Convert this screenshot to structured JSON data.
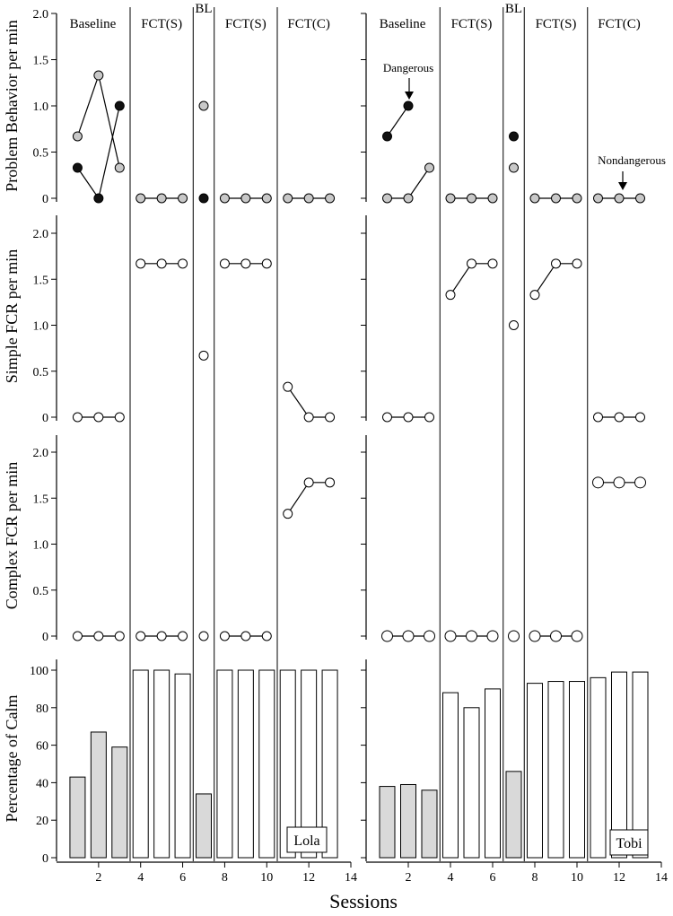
{
  "figure": {
    "x_axis_label": "Sessions",
    "x_ticks": [
      2,
      4,
      6,
      8,
      10,
      12,
      14
    ],
    "phase_change_lines": [
      3.5,
      6.5,
      7.5,
      10.5
    ]
  },
  "colors": {
    "dangerous_marker": "#111111",
    "nondangerous_marker": "#c8c8c8",
    "fcr_marker": "#ffffff",
    "baseline_bar": "#d9d9d9",
    "treatment_bar": "#ffffff"
  },
  "chart_data": [
    {
      "participant": "Lola",
      "phase_labels": [
        "Baseline",
        "FCT(S)",
        "BL",
        "FCT(S)",
        "FCT(C)"
      ],
      "panels": [
        {
          "type": "line",
          "ylabel": "Problem Behavior per min",
          "ylim": [
            0,
            2.0
          ],
          "yticks": [
            "0",
            "0.5",
            "1.0",
            "1.5",
            "2.0"
          ],
          "series": [
            {
              "marker": "grey",
              "segments": [
                [
                  [
                    1,
                    0.67
                  ],
                  [
                    2,
                    1.33
                  ],
                  [
                    3,
                    0.33
                  ]
                ],
                [
                  [
                    4,
                    0
                  ],
                  [
                    5,
                    0
                  ],
                  [
                    6,
                    0
                  ]
                ],
                [
                  [
                    7,
                    1.0
                  ]
                ],
                [
                  [
                    8,
                    0
                  ],
                  [
                    9,
                    0
                  ],
                  [
                    10,
                    0
                  ]
                ],
                [
                  [
                    11,
                    0
                  ],
                  [
                    12,
                    0
                  ],
                  [
                    13,
                    0
                  ]
                ]
              ]
            },
            {
              "marker": "black",
              "segments": [
                [
                  [
                    1,
                    0.33
                  ],
                  [
                    2,
                    0
                  ],
                  [
                    3,
                    1.0
                  ]
                ],
                [
                  [
                    7,
                    0
                  ]
                ]
              ]
            }
          ]
        },
        {
          "type": "line",
          "ylabel": "Simple FCR per min",
          "ylim": [
            0,
            2.0
          ],
          "yticks": [
            "0",
            "0.5",
            "1.0",
            "1.5",
            "2.0"
          ],
          "series": [
            {
              "marker": "white",
              "segments": [
                [
                  [
                    1,
                    0
                  ],
                  [
                    2,
                    0
                  ],
                  [
                    3,
                    0
                  ]
                ],
                [
                  [
                    4,
                    1.67
                  ],
                  [
                    5,
                    1.67
                  ],
                  [
                    6,
                    1.67
                  ]
                ],
                [
                  [
                    7,
                    0.67
                  ]
                ],
                [
                  [
                    8,
                    1.67
                  ],
                  [
                    9,
                    1.67
                  ],
                  [
                    10,
                    1.67
                  ]
                ],
                [
                  [
                    11,
                    0.33
                  ],
                  [
                    12,
                    0
                  ],
                  [
                    13,
                    0
                  ]
                ]
              ]
            }
          ]
        },
        {
          "type": "line",
          "ylabel": "Complex FCR per min",
          "ylim": [
            0,
            2.0
          ],
          "yticks": [
            "0",
            "0.5",
            "1.0",
            "1.5",
            "2.0"
          ],
          "series": [
            {
              "marker": "white",
              "segments": [
                [
                  [
                    1,
                    0
                  ],
                  [
                    2,
                    0
                  ],
                  [
                    3,
                    0
                  ]
                ],
                [
                  [
                    4,
                    0
                  ],
                  [
                    5,
                    0
                  ],
                  [
                    6,
                    0
                  ]
                ],
                [
                  [
                    7,
                    0
                  ]
                ],
                [
                  [
                    8,
                    0
                  ],
                  [
                    9,
                    0
                  ],
                  [
                    10,
                    0
                  ]
                ],
                [
                  [
                    11,
                    1.33
                  ],
                  [
                    12,
                    1.67
                  ],
                  [
                    13,
                    1.67
                  ]
                ]
              ]
            }
          ]
        },
        {
          "type": "bar",
          "ylabel": "Percentage of Calm",
          "ylim": [
            0,
            100
          ],
          "yticks": [
            "0",
            "20",
            "40",
            "60",
            "80",
            "100"
          ],
          "bars": [
            {
              "x": 1,
              "value": 43,
              "fill": "grey"
            },
            {
              "x": 2,
              "value": 67,
              "fill": "grey"
            },
            {
              "x": 3,
              "value": 59,
              "fill": "grey"
            },
            {
              "x": 4,
              "value": 100,
              "fill": "white"
            },
            {
              "x": 5,
              "value": 100,
              "fill": "white"
            },
            {
              "x": 6,
              "value": 98,
              "fill": "white"
            },
            {
              "x": 7,
              "value": 34,
              "fill": "grey"
            },
            {
              "x": 8,
              "value": 100,
              "fill": "white"
            },
            {
              "x": 9,
              "value": 100,
              "fill": "white"
            },
            {
              "x": 10,
              "value": 100,
              "fill": "white"
            },
            {
              "x": 11,
              "value": 100,
              "fill": "white"
            },
            {
              "x": 12,
              "value": 100,
              "fill": "white"
            },
            {
              "x": 13,
              "value": 100,
              "fill": "white"
            }
          ]
        }
      ]
    },
    {
      "participant": "Tobi",
      "phase_labels": [
        "Baseline",
        "FCT(S)",
        "BL",
        "FCT(S)",
        "FCT(C)"
      ],
      "annotations": [
        "Dangerous",
        "Nondangerous"
      ],
      "panels": [
        {
          "type": "line",
          "ylabel": "",
          "ylim": [
            0,
            2.0
          ],
          "series": [
            {
              "marker": "black",
              "segments": [
                [
                  [
                    1,
                    0.67
                  ],
                  [
                    2,
                    1.0
                  ]
                ],
                [
                  [
                    7,
                    0.67
                  ]
                ]
              ]
            },
            {
              "marker": "grey",
              "segments": [
                [
                  [
                    1,
                    0
                  ],
                  [
                    2,
                    0
                  ],
                  [
                    3,
                    0.33
                  ]
                ],
                [
                  [
                    4,
                    0
                  ],
                  [
                    5,
                    0
                  ],
                  [
                    6,
                    0
                  ]
                ],
                [
                  [
                    7,
                    0.33
                  ]
                ],
                [
                  [
                    8,
                    0
                  ],
                  [
                    9,
                    0
                  ],
                  [
                    10,
                    0
                  ]
                ],
                [
                  [
                    11,
                    0
                  ],
                  [
                    12,
                    0
                  ],
                  [
                    13,
                    0
                  ]
                ]
              ]
            }
          ]
        },
        {
          "type": "line",
          "ylabel": "",
          "ylim": [
            0,
            2.0
          ],
          "series": [
            {
              "marker": "white",
              "segments": [
                [
                  [
                    1,
                    0
                  ],
                  [
                    2,
                    0
                  ],
                  [
                    3,
                    0
                  ]
                ],
                [
                  [
                    4,
                    1.33
                  ],
                  [
                    5,
                    1.67
                  ],
                  [
                    6,
                    1.67
                  ]
                ],
                [
                  [
                    7,
                    1.0
                  ]
                ],
                [
                  [
                    8,
                    1.33
                  ],
                  [
                    9,
                    1.67
                  ],
                  [
                    10,
                    1.67
                  ]
                ],
                [
                  [
                    11,
                    0
                  ],
                  [
                    12,
                    0
                  ],
                  [
                    13,
                    0
                  ]
                ]
              ]
            }
          ]
        },
        {
          "type": "line",
          "ylabel": "",
          "ylim": [
            0,
            2.0
          ],
          "series": [
            {
              "marker": "white",
              "segments": [
                [
                  [
                    1,
                    0
                  ],
                  [
                    2,
                    0
                  ],
                  [
                    3,
                    0
                  ]
                ],
                [
                  [
                    4,
                    0
                  ],
                  [
                    5,
                    0
                  ],
                  [
                    6,
                    0
                  ]
                ],
                [
                  [
                    7,
                    0
                  ]
                ],
                [
                  [
                    8,
                    0
                  ],
                  [
                    9,
                    0
                  ],
                  [
                    10,
                    0
                  ]
                ],
                [
                  [
                    11,
                    1.67
                  ],
                  [
                    12,
                    1.67
                  ],
                  [
                    13,
                    1.67
                  ]
                ]
              ]
            }
          ]
        },
        {
          "type": "bar",
          "ylabel": "",
          "ylim": [
            0,
            100
          ],
          "bars": [
            {
              "x": 1,
              "value": 38,
              "fill": "grey"
            },
            {
              "x": 2,
              "value": 39,
              "fill": "grey"
            },
            {
              "x": 3,
              "value": 36,
              "fill": "grey"
            },
            {
              "x": 4,
              "value": 88,
              "fill": "white"
            },
            {
              "x": 5,
              "value": 80,
              "fill": "white"
            },
            {
              "x": 6,
              "value": 90,
              "fill": "white"
            },
            {
              "x": 7,
              "value": 46,
              "fill": "grey"
            },
            {
              "x": 8,
              "value": 93,
              "fill": "white"
            },
            {
              "x": 9,
              "value": 94,
              "fill": "white"
            },
            {
              "x": 10,
              "value": 94,
              "fill": "white"
            },
            {
              "x": 11,
              "value": 96,
              "fill": "white"
            },
            {
              "x": 12,
              "value": 99,
              "fill": "white"
            },
            {
              "x": 13,
              "value": 99,
              "fill": "white"
            }
          ]
        }
      ]
    }
  ]
}
